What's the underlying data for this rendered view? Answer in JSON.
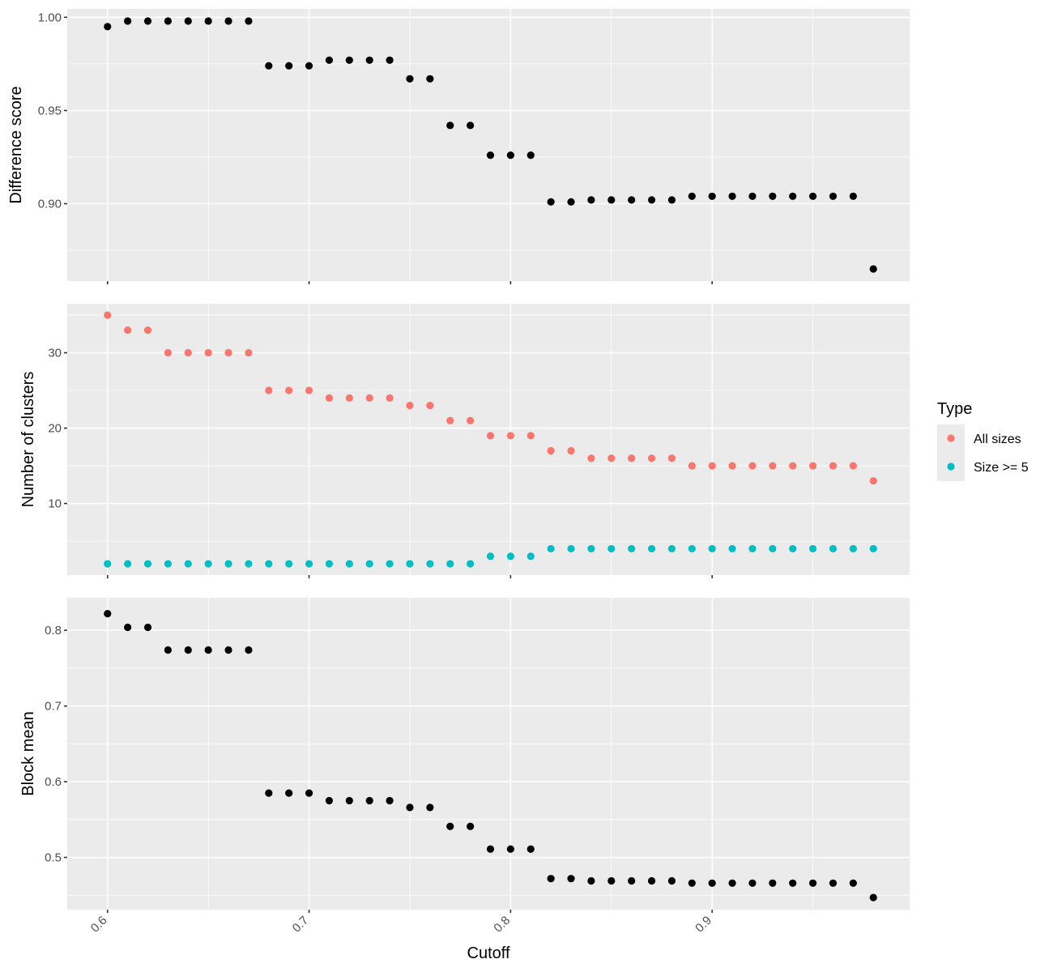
{
  "chart_data": {
    "type": "scatter",
    "xlabel": "Cutoff",
    "x_ticks": [
      0.6,
      0.7,
      0.8,
      0.9
    ],
    "x_tick_labels": [
      "0.6",
      "0.7",
      "0.8",
      "0.9"
    ],
    "xlim": [
      0.58,
      0.998
    ],
    "grid": true,
    "legend_placement": "right",
    "legend": {
      "title": "Type",
      "entries": [
        {
          "label": "All sizes",
          "color": "#F8766D"
        },
        {
          "label": "Size >= 5",
          "color": "#00BFC4"
        }
      ]
    },
    "panels": [
      {
        "ylabel": "Difference score",
        "ylim": [
          0.8585,
          1.0045
        ],
        "y_ticks": [
          0.9,
          0.95,
          1.0
        ],
        "y_tick_labels": [
          "0.90",
          "0.95",
          "1.00"
        ],
        "series": [
          {
            "color": "#000000",
            "x": [
              0.6,
              0.61,
              0.62,
              0.63,
              0.64,
              0.65,
              0.66,
              0.67,
              0.68,
              0.69,
              0.7,
              0.71,
              0.72,
              0.73,
              0.74,
              0.75,
              0.76,
              0.77,
              0.78,
              0.79,
              0.8,
              0.81,
              0.82,
              0.83,
              0.84,
              0.85,
              0.86,
              0.87,
              0.88,
              0.89,
              0.9,
              0.91,
              0.92,
              0.93,
              0.94,
              0.95,
              0.96,
              0.97,
              0.98
            ],
            "y": [
              0.995,
              0.998,
              0.998,
              0.998,
              0.998,
              0.998,
              0.998,
              0.998,
              0.974,
              0.974,
              0.974,
              0.977,
              0.977,
              0.977,
              0.977,
              0.967,
              0.967,
              0.942,
              0.942,
              0.926,
              0.926,
              0.926,
              0.901,
              0.901,
              0.902,
              0.902,
              0.902,
              0.902,
              0.902,
              0.904,
              0.904,
              0.904,
              0.904,
              0.904,
              0.904,
              0.904,
              0.904,
              0.904,
              0.865
            ]
          }
        ]
      },
      {
        "ylabel": "Number of clusters",
        "ylim": [
          0.5,
          36.5
        ],
        "y_ticks": [
          10,
          20,
          30
        ],
        "y_tick_labels": [
          "10",
          "20",
          "30"
        ],
        "series": [
          {
            "name": "All sizes",
            "color": "#F8766D",
            "x": [
              0.6,
              0.61,
              0.62,
              0.63,
              0.64,
              0.65,
              0.66,
              0.67,
              0.68,
              0.69,
              0.7,
              0.71,
              0.72,
              0.73,
              0.74,
              0.75,
              0.76,
              0.77,
              0.78,
              0.79,
              0.8,
              0.81,
              0.82,
              0.83,
              0.84,
              0.85,
              0.86,
              0.87,
              0.88,
              0.89,
              0.9,
              0.91,
              0.92,
              0.93,
              0.94,
              0.95,
              0.96,
              0.97,
              0.98
            ],
            "y": [
              35,
              33,
              33,
              30,
              30,
              30,
              30,
              30,
              25,
              25,
              25,
              24,
              24,
              24,
              24,
              23,
              23,
              21,
              21,
              19,
              19,
              19,
              17,
              17,
              16,
              16,
              16,
              16,
              16,
              15,
              15,
              15,
              15,
              15,
              15,
              15,
              15,
              15,
              13
            ]
          },
          {
            "name": "Size >= 5",
            "color": "#00BFC4",
            "x": [
              0.6,
              0.61,
              0.62,
              0.63,
              0.64,
              0.65,
              0.66,
              0.67,
              0.68,
              0.69,
              0.7,
              0.71,
              0.72,
              0.73,
              0.74,
              0.75,
              0.76,
              0.77,
              0.78,
              0.79,
              0.8,
              0.81,
              0.82,
              0.83,
              0.84,
              0.85,
              0.86,
              0.87,
              0.88,
              0.89,
              0.9,
              0.91,
              0.92,
              0.93,
              0.94,
              0.95,
              0.96,
              0.97,
              0.98
            ],
            "y": [
              2,
              2,
              2,
              2,
              2,
              2,
              2,
              2,
              2,
              2,
              2,
              2,
              2,
              2,
              2,
              2,
              2,
              2,
              2,
              3,
              3,
              3,
              4,
              4,
              4,
              4,
              4,
              4,
              4,
              4,
              4,
              4,
              4,
              4,
              4,
              4,
              4,
              4,
              4
            ]
          }
        ]
      },
      {
        "ylabel": "Block mean",
        "ylim": [
          0.431,
          0.843
        ],
        "y_ticks": [
          0.5,
          0.6,
          0.7,
          0.8
        ],
        "y_tick_labels": [
          "0.5",
          "0.6",
          "0.7",
          "0.8"
        ],
        "series": [
          {
            "color": "#000000",
            "x": [
              0.6,
              0.61,
              0.62,
              0.63,
              0.64,
              0.65,
              0.66,
              0.67,
              0.68,
              0.69,
              0.7,
              0.71,
              0.72,
              0.73,
              0.74,
              0.75,
              0.76,
              0.77,
              0.78,
              0.79,
              0.8,
              0.81,
              0.82,
              0.83,
              0.84,
              0.85,
              0.86,
              0.87,
              0.88,
              0.89,
              0.9,
              0.91,
              0.92,
              0.93,
              0.94,
              0.95,
              0.96,
              0.97,
              0.98
            ],
            "y": [
              0.822,
              0.804,
              0.804,
              0.774,
              0.774,
              0.774,
              0.774,
              0.774,
              0.585,
              0.585,
              0.585,
              0.575,
              0.575,
              0.575,
              0.575,
              0.566,
              0.566,
              0.541,
              0.541,
              0.511,
              0.511,
              0.511,
              0.472,
              0.472,
              0.469,
              0.469,
              0.469,
              0.469,
              0.469,
              0.466,
              0.466,
              0.466,
              0.466,
              0.466,
              0.466,
              0.466,
              0.466,
              0.466,
              0.447
            ]
          }
        ]
      }
    ]
  }
}
